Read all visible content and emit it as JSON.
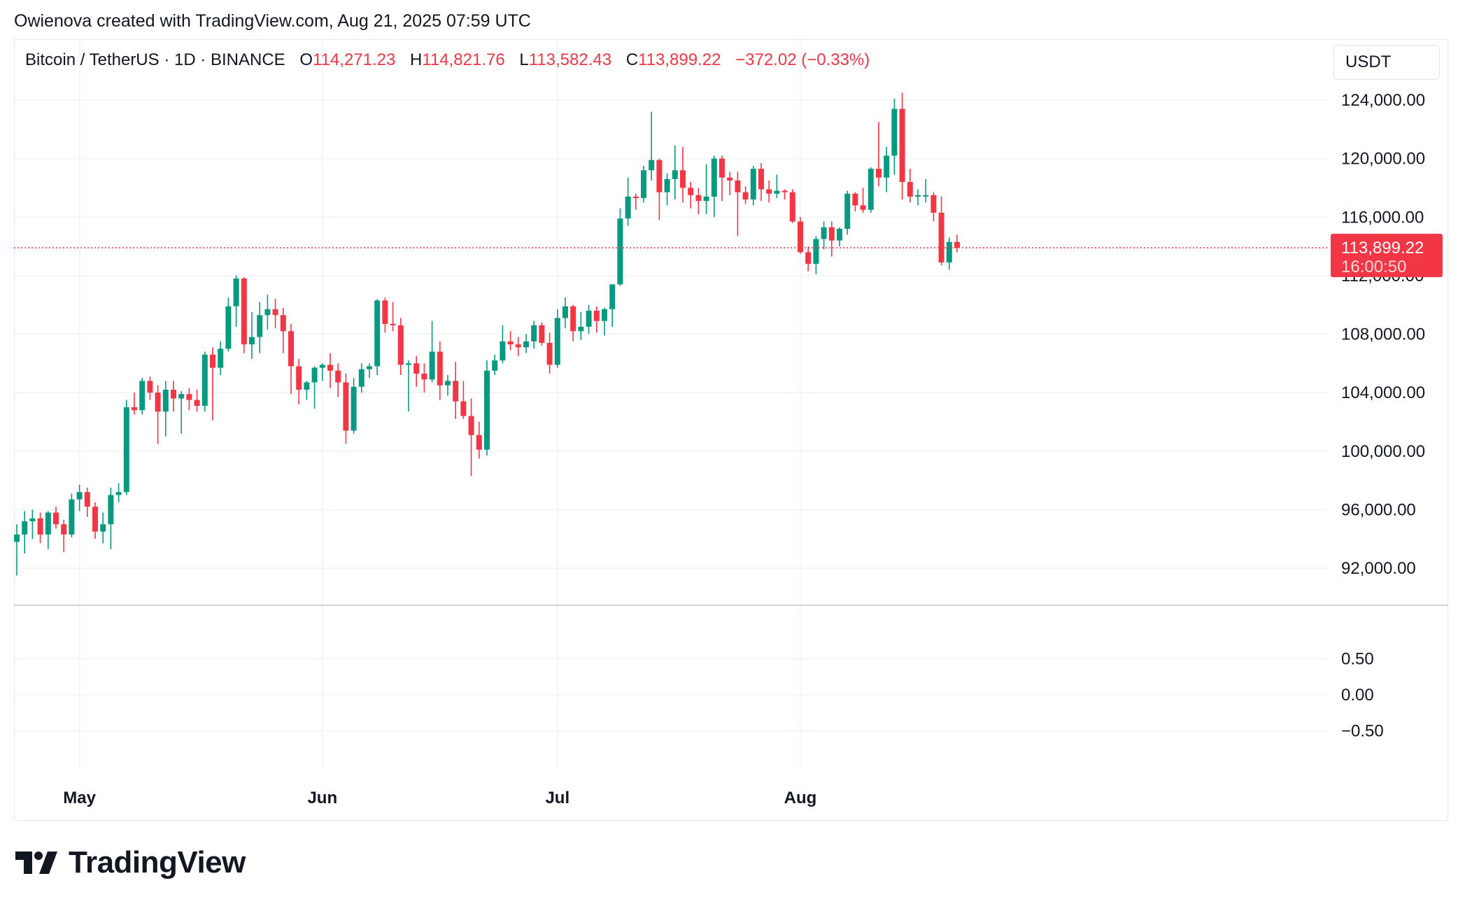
{
  "header": {
    "attribution": "Owienova created with TradingView.com, Aug 21, 2025 07:59 UTC"
  },
  "legend": {
    "symbol": "Bitcoin / TetherUS · 1D · BINANCE",
    "open_label": "O",
    "open": "114,271.23",
    "high_label": "H",
    "high": "114,821.76",
    "low_label": "L",
    "low": "113,582.43",
    "close_label": "C",
    "close": "113,899.22",
    "change": "−372.02 (−0.33%)"
  },
  "unit_button": {
    "label": "USDT"
  },
  "price_tag": {
    "price": "113,899.22",
    "countdown": "16:00:50"
  },
  "brand": {
    "name": "TradingView",
    "icon": "tradingview-logo-icon"
  },
  "colors": {
    "up": "#089981",
    "down": "#f23645",
    "grid": "#f0f3fa",
    "text": "#131722"
  },
  "chart_data": {
    "type": "candlestick",
    "symbol": "BTCUSDT",
    "interval": "1D",
    "exchange": "BINANCE",
    "y_ticks": [
      "124,000.00",
      "120,000.00",
      "116,000.00",
      "108,000.00",
      "104,000.00",
      "100,000.00",
      "96,000.00",
      "92,000.00"
    ],
    "ylim": [
      89500,
      126500
    ],
    "indicator_ticks": [
      "0.50",
      "0.00",
      "−0.50"
    ],
    "indicator_ticks_values": [
      0.5,
      0,
      -0.5
    ],
    "x_ticks": [
      {
        "label": "May",
        "index": 8
      },
      {
        "label": "Jun",
        "index": 39
      },
      {
        "label": "Jul",
        "index": 69
      },
      {
        "label": "Aug",
        "index": 100
      }
    ],
    "last_price": 113899.22,
    "grid": true,
    "candles": [
      {
        "o": 93800,
        "h": 95000,
        "l": 91500,
        "c": 94300
      },
      {
        "o": 94300,
        "h": 95900,
        "l": 93000,
        "c": 95200
      },
      {
        "o": 95200,
        "h": 96000,
        "l": 94000,
        "c": 95400
      },
      {
        "o": 95400,
        "h": 95800,
        "l": 93700,
        "c": 94300
      },
      {
        "o": 94300,
        "h": 95900,
        "l": 93300,
        "c": 95800
      },
      {
        "o": 95800,
        "h": 96200,
        "l": 94700,
        "c": 95000
      },
      {
        "o": 95000,
        "h": 95300,
        "l": 93100,
        "c": 94300
      },
      {
        "o": 94300,
        "h": 97100,
        "l": 94100,
        "c": 96700
      },
      {
        "o": 96700,
        "h": 97700,
        "l": 95900,
        "c": 97200
      },
      {
        "o": 97200,
        "h": 97500,
        "l": 95500,
        "c": 96200
      },
      {
        "o": 96200,
        "h": 96500,
        "l": 94000,
        "c": 94500
      },
      {
        "o": 94500,
        "h": 95800,
        "l": 93700,
        "c": 95000
      },
      {
        "o": 95000,
        "h": 97500,
        "l": 93300,
        "c": 97000
      },
      {
        "o": 97000,
        "h": 97800,
        "l": 96500,
        "c": 97200
      },
      {
        "o": 97200,
        "h": 103500,
        "l": 97000,
        "c": 103000
      },
      {
        "o": 103000,
        "h": 104000,
        "l": 102500,
        "c": 102800
      },
      {
        "o": 102800,
        "h": 105000,
        "l": 102500,
        "c": 104800
      },
      {
        "o": 104800,
        "h": 105100,
        "l": 103500,
        "c": 104000
      },
      {
        "o": 104000,
        "h": 104500,
        "l": 100500,
        "c": 102700
      },
      {
        "o": 102700,
        "h": 104800,
        "l": 101000,
        "c": 104200
      },
      {
        "o": 104200,
        "h": 104800,
        "l": 102700,
        "c": 103600
      },
      {
        "o": 103600,
        "h": 104100,
        "l": 101200,
        "c": 103900
      },
      {
        "o": 103900,
        "h": 104300,
        "l": 102800,
        "c": 103500
      },
      {
        "o": 103500,
        "h": 104200,
        "l": 102700,
        "c": 103100
      },
      {
        "o": 103100,
        "h": 106800,
        "l": 102700,
        "c": 106600
      },
      {
        "o": 106600,
        "h": 107100,
        "l": 102100,
        "c": 105700
      },
      {
        "o": 105700,
        "h": 107500,
        "l": 105200,
        "c": 107000
      },
      {
        "o": 107000,
        "h": 110500,
        "l": 106800,
        "c": 109900
      },
      {
        "o": 109900,
        "h": 112000,
        "l": 108500,
        "c": 111800
      },
      {
        "o": 111800,
        "h": 111900,
        "l": 106700,
        "c": 107300
      },
      {
        "o": 107300,
        "h": 109500,
        "l": 106300,
        "c": 107800
      },
      {
        "o": 107800,
        "h": 110200,
        "l": 106700,
        "c": 109300
      },
      {
        "o": 109300,
        "h": 110700,
        "l": 108300,
        "c": 109700
      },
      {
        "o": 109700,
        "h": 110400,
        "l": 108400,
        "c": 109300
      },
      {
        "o": 109300,
        "h": 109800,
        "l": 106700,
        "c": 108200
      },
      {
        "o": 108200,
        "h": 108700,
        "l": 103900,
        "c": 105800
      },
      {
        "o": 105800,
        "h": 106300,
        "l": 103200,
        "c": 104200
      },
      {
        "o": 104200,
        "h": 104800,
        "l": 103500,
        "c": 104700
      },
      {
        "o": 104700,
        "h": 105800,
        "l": 102900,
        "c": 105700
      },
      {
        "o": 105700,
        "h": 106000,
        "l": 104800,
        "c": 105900
      },
      {
        "o": 105900,
        "h": 106700,
        "l": 104300,
        "c": 105500
      },
      {
        "o": 105500,
        "h": 106000,
        "l": 103700,
        "c": 104700
      },
      {
        "o": 104700,
        "h": 105300,
        "l": 100500,
        "c": 101400
      },
      {
        "o": 101400,
        "h": 105000,
        "l": 101200,
        "c": 104400
      },
      {
        "o": 104400,
        "h": 106000,
        "l": 104000,
        "c": 105600
      },
      {
        "o": 105600,
        "h": 106000,
        "l": 105000,
        "c": 105800
      },
      {
        "o": 105800,
        "h": 110400,
        "l": 105200,
        "c": 110300
      },
      {
        "o": 110300,
        "h": 110500,
        "l": 108100,
        "c": 108700
      },
      {
        "o": 108700,
        "h": 110200,
        "l": 108200,
        "c": 108600
      },
      {
        "o": 108600,
        "h": 109100,
        "l": 105200,
        "c": 105900
      },
      {
        "o": 105900,
        "h": 106200,
        "l": 102700,
        "c": 106000
      },
      {
        "o": 106000,
        "h": 106500,
        "l": 104400,
        "c": 105300
      },
      {
        "o": 105300,
        "h": 106000,
        "l": 104000,
        "c": 104900
      },
      {
        "o": 104900,
        "h": 108900,
        "l": 104700,
        "c": 106800
      },
      {
        "o": 106800,
        "h": 107500,
        "l": 103500,
        "c": 104500
      },
      {
        "o": 104500,
        "h": 105200,
        "l": 103800,
        "c": 104800
      },
      {
        "o": 104800,
        "h": 106100,
        "l": 102200,
        "c": 103400
      },
      {
        "o": 103400,
        "h": 104800,
        "l": 102200,
        "c": 102400
      },
      {
        "o": 102400,
        "h": 103600,
        "l": 98300,
        "c": 101100
      },
      {
        "o": 101100,
        "h": 102000,
        "l": 99500,
        "c": 100100
      },
      {
        "o": 100100,
        "h": 106200,
        "l": 99700,
        "c": 105500
      },
      {
        "o": 105500,
        "h": 106600,
        "l": 105200,
        "c": 106200
      },
      {
        "o": 106200,
        "h": 108600,
        "l": 106000,
        "c": 107500
      },
      {
        "o": 107500,
        "h": 108200,
        "l": 106900,
        "c": 107300
      },
      {
        "o": 107300,
        "h": 107800,
        "l": 106500,
        "c": 107100
      },
      {
        "o": 107100,
        "h": 108000,
        "l": 106700,
        "c": 107500
      },
      {
        "o": 107500,
        "h": 108900,
        "l": 107000,
        "c": 108600
      },
      {
        "o": 108600,
        "h": 108800,
        "l": 107200,
        "c": 107400
      },
      {
        "o": 107400,
        "h": 108100,
        "l": 105300,
        "c": 105900
      },
      {
        "o": 105900,
        "h": 109700,
        "l": 105700,
        "c": 109100
      },
      {
        "o": 109100,
        "h": 110500,
        "l": 108400,
        "c": 109900
      },
      {
        "o": 109900,
        "h": 110000,
        "l": 107500,
        "c": 108200
      },
      {
        "o": 108200,
        "h": 109500,
        "l": 107600,
        "c": 108500
      },
      {
        "o": 108500,
        "h": 110000,
        "l": 108000,
        "c": 109600
      },
      {
        "o": 109600,
        "h": 109900,
        "l": 108100,
        "c": 108900
      },
      {
        "o": 108900,
        "h": 109800,
        "l": 107900,
        "c": 109700
      },
      {
        "o": 109700,
        "h": 111400,
        "l": 108500,
        "c": 111400
      },
      {
        "o": 111400,
        "h": 116600,
        "l": 111300,
        "c": 115900
      },
      {
        "o": 115900,
        "h": 118700,
        "l": 115400,
        "c": 117400
      },
      {
        "o": 117400,
        "h": 117600,
        "l": 116500,
        "c": 117300
      },
      {
        "o": 117300,
        "h": 119500,
        "l": 117000,
        "c": 119200
      },
      {
        "o": 119200,
        "h": 123200,
        "l": 118500,
        "c": 119900
      },
      {
        "o": 119900,
        "h": 120000,
        "l": 115800,
        "c": 117700
      },
      {
        "o": 117700,
        "h": 119000,
        "l": 116800,
        "c": 118600
      },
      {
        "o": 118600,
        "h": 120900,
        "l": 117200,
        "c": 119200
      },
      {
        "o": 119200,
        "h": 120800,
        "l": 117000,
        "c": 118000
      },
      {
        "o": 118000,
        "h": 118400,
        "l": 116600,
        "c": 117500
      },
      {
        "o": 117500,
        "h": 118000,
        "l": 116200,
        "c": 117100
      },
      {
        "o": 117100,
        "h": 119600,
        "l": 116200,
        "c": 117400
      },
      {
        "o": 117400,
        "h": 120200,
        "l": 116000,
        "c": 120000
      },
      {
        "o": 120000,
        "h": 120200,
        "l": 117100,
        "c": 118700
      },
      {
        "o": 118700,
        "h": 119100,
        "l": 117500,
        "c": 118500
      },
      {
        "o": 118500,
        "h": 119100,
        "l": 114700,
        "c": 117700
      },
      {
        "o": 117700,
        "h": 118100,
        "l": 116900,
        "c": 117200
      },
      {
        "o": 117200,
        "h": 119500,
        "l": 116800,
        "c": 119300
      },
      {
        "o": 119300,
        "h": 119700,
        "l": 117100,
        "c": 117900
      },
      {
        "o": 117900,
        "h": 118500,
        "l": 117000,
        "c": 117600
      },
      {
        "o": 117600,
        "h": 118900,
        "l": 117300,
        "c": 117800
      },
      {
        "o": 117800,
        "h": 117900,
        "l": 117200,
        "c": 117700
      },
      {
        "o": 117700,
        "h": 117900,
        "l": 115600,
        "c": 115700
      },
      {
        "o": 115700,
        "h": 116000,
        "l": 113500,
        "c": 113600
      },
      {
        "o": 113600,
        "h": 114000,
        "l": 112300,
        "c": 112800
      },
      {
        "o": 112800,
        "h": 114700,
        "l": 112100,
        "c": 114500
      },
      {
        "o": 114500,
        "h": 115700,
        "l": 113800,
        "c": 115300
      },
      {
        "o": 115300,
        "h": 115700,
        "l": 113300,
        "c": 114400
      },
      {
        "o": 114400,
        "h": 115300,
        "l": 114000,
        "c": 115200
      },
      {
        "o": 115200,
        "h": 117800,
        "l": 114800,
        "c": 117600
      },
      {
        "o": 117600,
        "h": 117700,
        "l": 116400,
        "c": 116800
      },
      {
        "o": 116800,
        "h": 118000,
        "l": 116300,
        "c": 116500
      },
      {
        "o": 116500,
        "h": 119400,
        "l": 116300,
        "c": 119300
      },
      {
        "o": 119300,
        "h": 122500,
        "l": 118100,
        "c": 118700
      },
      {
        "o": 118700,
        "h": 120800,
        "l": 117700,
        "c": 120200
      },
      {
        "o": 120200,
        "h": 124100,
        "l": 118900,
        "c": 123400
      },
      {
        "o": 123400,
        "h": 124500,
        "l": 117200,
        "c": 118400
      },
      {
        "o": 118400,
        "h": 119300,
        "l": 117000,
        "c": 117400
      },
      {
        "o": 117400,
        "h": 117900,
        "l": 116800,
        "c": 117500
      },
      {
        "o": 117500,
        "h": 118600,
        "l": 117000,
        "c": 117500
      },
      {
        "o": 117500,
        "h": 117700,
        "l": 115700,
        "c": 116300
      },
      {
        "o": 116300,
        "h": 117400,
        "l": 112700,
        "c": 112900
      },
      {
        "o": 112900,
        "h": 114600,
        "l": 112400,
        "c": 114300
      },
      {
        "o": 114300,
        "h": 114800,
        "l": 113600,
        "c": 113900
      }
    ]
  }
}
